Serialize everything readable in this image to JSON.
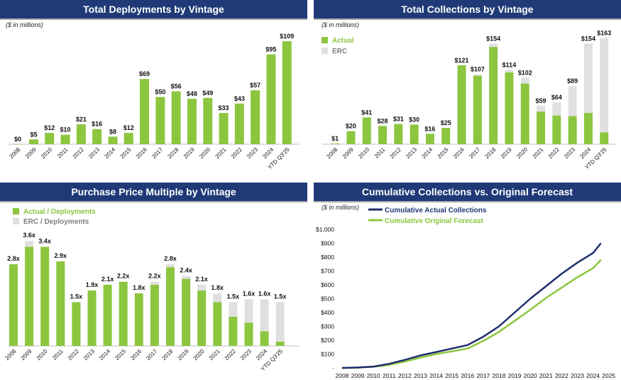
{
  "colors": {
    "header": "#1f3a77",
    "actual": "#8cc63f",
    "erc": "#e0e0e0",
    "forecast": "#8cc63f",
    "cumulative": "#1f2e6e",
    "legend_gray": "#7f7f7f",
    "legend_blue": "#1f3a77"
  },
  "panels": {
    "deployments": {
      "title": "Total Deployments by Vintage"
    },
    "collections": {
      "title": "Total Collections by Vintage"
    },
    "multiple": {
      "title": "Purchase Price Multiple by Vintage"
    },
    "cumulative": {
      "title": "Cumulative Collections vs. Original Forecast"
    }
  },
  "chart_data": [
    {
      "id": "deployments",
      "type": "bar",
      "title": "Total Deployments by Vintage",
      "units_note": "($ in millions)",
      "categories": [
        "2008",
        "2009",
        "2010",
        "2011",
        "2012",
        "2013",
        "2014",
        "2015",
        "2016",
        "2017",
        "2018",
        "2019",
        "2020",
        "2021",
        "2022",
        "2023",
        "2024",
        "YTD Q3'25"
      ],
      "values": [
        0,
        5,
        12,
        10,
        21,
        16,
        8,
        12,
        69,
        50,
        56,
        48,
        49,
        33,
        43,
        57,
        95,
        109
      ],
      "labels": [
        "$0",
        "$5",
        "$12",
        "$10",
        "$21",
        "$16",
        "$8",
        "$12",
        "$69",
        "$50",
        "$56",
        "$48",
        "$49",
        "$33",
        "$43",
        "$57",
        "$95",
        "$109"
      ],
      "ylim": [
        0,
        115
      ]
    },
    {
      "id": "collections",
      "type": "bar",
      "stacked": true,
      "title": "Total Collections by Vintage",
      "units_note": "($ in millions)",
      "categories": [
        "2008",
        "2009",
        "2010",
        "2011",
        "2012",
        "2013",
        "2014",
        "2015",
        "2016",
        "2017",
        "2018",
        "2019",
        "2020",
        "2021",
        "2022",
        "2023",
        "2024",
        "YTD Q3'25"
      ],
      "series": [
        {
          "name": "Actual",
          "values": [
            1,
            20,
            41,
            28,
            31,
            30,
            16,
            25,
            121,
            105,
            149,
            110,
            93,
            50,
            44,
            43,
            48,
            18
          ]
        },
        {
          "name": "ERC",
          "values": [
            0,
            0,
            0,
            0,
            0,
            0,
            0,
            0,
            0,
            2,
            5,
            4,
            9,
            9,
            20,
            46,
            106,
            145
          ]
        }
      ],
      "labels": [
        "$1",
        "$20",
        "$41",
        "$28",
        "$31",
        "$30",
        "$16",
        "$25",
        "$121",
        "$107",
        "$154",
        "$114",
        "$102",
        "$59",
        "$64",
        "$89",
        "$154",
        "$163"
      ],
      "ylim": [
        0,
        172
      ]
    },
    {
      "id": "multiple",
      "type": "bar",
      "stacked": true,
      "title": "Purchase Price Multiple by Vintage",
      "categories": [
        "2008",
        "2009",
        "2010",
        "2011",
        "2012",
        "2013",
        "2014",
        "2015",
        "2016",
        "2017",
        "2018",
        "2019",
        "2020",
        "2021",
        "2022",
        "2023",
        "2024",
        "YTD Q3'25"
      ],
      "series": [
        {
          "name": "Actual / Deployments",
          "values": [
            2.8,
            3.4,
            3.4,
            2.9,
            1.5,
            1.9,
            2.1,
            2.2,
            1.8,
            2.1,
            2.7,
            2.3,
            1.9,
            1.5,
            1.0,
            0.8,
            0.5,
            0.15
          ]
        },
        {
          "name": "ERC / Deployments",
          "values": [
            0,
            0.2,
            0,
            0,
            0,
            0,
            0,
            0,
            0,
            0.1,
            0.1,
            0.1,
            0.2,
            0.3,
            0.5,
            0.8,
            1.1,
            1.35
          ]
        }
      ],
      "labels": [
        "2.8x",
        "3.6x",
        "3.4x",
        "2.9x",
        "1.5x",
        "1.9x",
        "2.1x",
        "2.2x",
        "1.8x",
        "2.2x",
        "2.8x",
        "2.4x",
        "2.1x",
        "1.8x",
        "1.5x",
        "1.6x",
        "1.6x",
        "1.5x"
      ],
      "ylim": [
        0,
        3.8
      ]
    },
    {
      "id": "cumulative",
      "type": "line",
      "title": "Cumulative Collections vs. Original Forecast",
      "units_note": "($ in millions)",
      "x": [
        2008,
        2009,
        2010,
        2011,
        2012,
        2013,
        2014,
        2015,
        2016,
        2017,
        2018,
        2019,
        2020,
        2021,
        2022,
        2023,
        2024,
        2024.5
      ],
      "xticks": [
        "2008",
        "2009",
        "2010",
        "2011",
        "2012",
        "2013",
        "2014",
        "2015",
        "2016",
        "2017",
        "2018",
        "2019",
        "2020",
        "2021",
        "2022",
        "2023",
        "2024",
        "2025"
      ],
      "yticks": [
        "-",
        "$100",
        "$200",
        "$300",
        "$400",
        "$500",
        "$600",
        "$700",
        "$800",
        "$900",
        "$1,000"
      ],
      "ylim": [
        0,
        1000
      ],
      "series": [
        {
          "name": "Cumulative Actual Collections",
          "values": [
            0,
            3,
            10,
            30,
            58,
            90,
            115,
            140,
            165,
            225,
            300,
            400,
            500,
            590,
            680,
            760,
            830,
            900
          ]
        },
        {
          "name": "Cumulative Original Forecast",
          "values": [
            0,
            2,
            8,
            22,
            45,
            75,
            100,
            120,
            140,
            195,
            260,
            340,
            420,
            505,
            580,
            655,
            720,
            780
          ]
        }
      ]
    }
  ]
}
